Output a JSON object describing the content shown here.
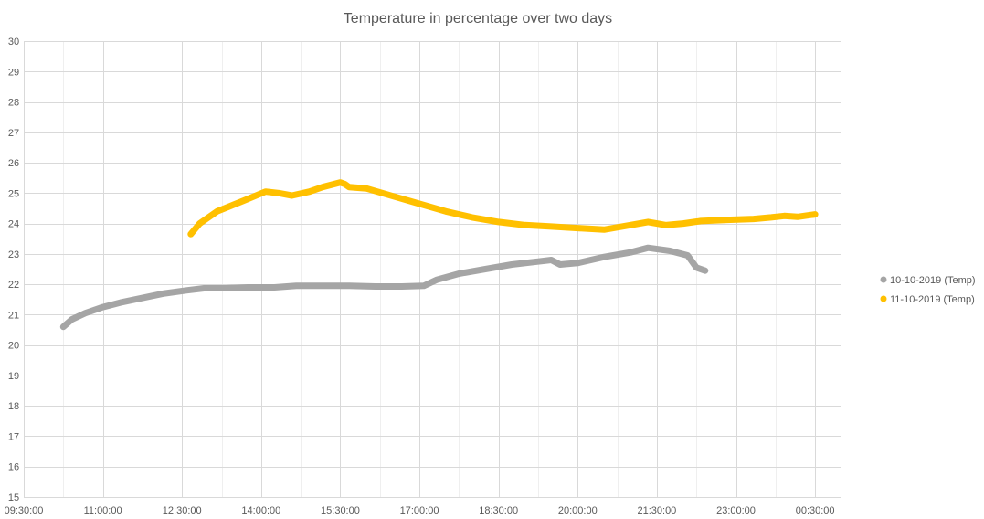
{
  "chart_data": {
    "type": "line",
    "title": "Temperature in percentage over two days",
    "xlabel": "",
    "ylabel": "",
    "x_axis": {
      "type": "time",
      "range": [
        "09:30:00",
        "01:00:00"
      ],
      "tick_labels": [
        "09:30:00",
        "11:00:00",
        "12:30:00",
        "14:00:00",
        "15:30:00",
        "17:00:00",
        "18:30:00",
        "20:00:00",
        "21:30:00",
        "23:00:00",
        "00:30:00"
      ],
      "minor_gridlines_every": "00:45:00"
    },
    "y_axis": {
      "range": [
        15,
        30
      ],
      "tick_labels": [
        "15",
        "16",
        "17",
        "18",
        "19",
        "20",
        "21",
        "22",
        "23",
        "24",
        "25",
        "26",
        "27",
        "28",
        "29",
        "30"
      ]
    },
    "grid": true,
    "legend": "right",
    "series": [
      {
        "name": "10-10-2019 (Temp)",
        "color": "#a5a5a5",
        "points": [
          [
            "10:15:00",
            20.6
          ],
          [
            "10:25:00",
            20.85
          ],
          [
            "10:40:00",
            21.05
          ],
          [
            "11:00:00",
            21.25
          ],
          [
            "11:20:00",
            21.4
          ],
          [
            "11:45:00",
            21.55
          ],
          [
            "12:10:00",
            21.7
          ],
          [
            "12:35:00",
            21.8
          ],
          [
            "12:55:00",
            21.87
          ],
          [
            "13:20:00",
            21.87
          ],
          [
            "13:45:00",
            21.9
          ],
          [
            "14:15:00",
            21.9
          ],
          [
            "14:40:00",
            21.95
          ],
          [
            "15:10:00",
            21.95
          ],
          [
            "15:40:00",
            21.95
          ],
          [
            "16:10:00",
            21.93
          ],
          [
            "16:40:00",
            21.93
          ],
          [
            "17:05:00",
            21.95
          ],
          [
            "17:20:00",
            22.15
          ],
          [
            "17:45:00",
            22.35
          ],
          [
            "18:15:00",
            22.5
          ],
          [
            "18:45:00",
            22.65
          ],
          [
            "19:15:00",
            22.75
          ],
          [
            "19:30:00",
            22.8
          ],
          [
            "19:40:00",
            22.65
          ],
          [
            "20:00:00",
            22.7
          ],
          [
            "20:30:00",
            22.9
          ],
          [
            "21:00:00",
            23.05
          ],
          [
            "21:20:00",
            23.2
          ],
          [
            "21:45:00",
            23.1
          ],
          [
            "22:05:00",
            22.95
          ],
          [
            "22:15:00",
            22.55
          ],
          [
            "22:25:00",
            22.45
          ]
        ]
      },
      {
        "name": "11-10-2019 (Temp)",
        "color": "#ffc000",
        "points": [
          [
            "12:40:00",
            23.65
          ],
          [
            "12:50:00",
            24.0
          ],
          [
            "13:10:00",
            24.4
          ],
          [
            "13:40:00",
            24.75
          ],
          [
            "14:05:00",
            25.05
          ],
          [
            "14:20:00",
            25.0
          ],
          [
            "14:35:00",
            24.92
          ],
          [
            "14:55:00",
            25.05
          ],
          [
            "15:10:00",
            25.2
          ],
          [
            "15:30:00",
            25.35
          ],
          [
            "15:35:00",
            25.3
          ],
          [
            "15:40:00",
            25.2
          ],
          [
            "16:00:00",
            25.15
          ],
          [
            "16:30:00",
            24.9
          ],
          [
            "17:00:00",
            24.65
          ],
          [
            "17:30:00",
            24.4
          ],
          [
            "18:00:00",
            24.2
          ],
          [
            "18:30:00",
            24.05
          ],
          [
            "19:00:00",
            23.95
          ],
          [
            "19:30:00",
            23.9
          ],
          [
            "20:00:00",
            23.85
          ],
          [
            "20:30:00",
            23.8
          ],
          [
            "21:00:00",
            23.95
          ],
          [
            "21:20:00",
            24.05
          ],
          [
            "21:30:00",
            24.0
          ],
          [
            "21:40:00",
            23.95
          ],
          [
            "22:00:00",
            24.0
          ],
          [
            "22:20:00",
            24.08
          ],
          [
            "22:50:00",
            24.12
          ],
          [
            "23:20:00",
            24.15
          ],
          [
            "23:40:00",
            24.2
          ],
          [
            "23:55:00",
            24.25
          ],
          [
            "00:10:00",
            24.22
          ],
          [
            "00:30:00",
            24.3
          ]
        ]
      }
    ]
  }
}
